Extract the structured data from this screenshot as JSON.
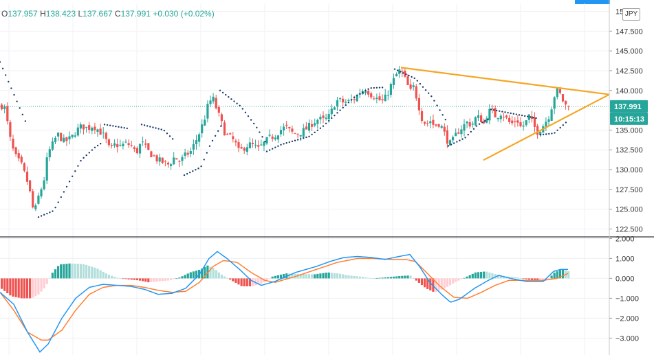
{
  "header": {
    "o_label": "O",
    "o_value": "137.957",
    "h_label": "H",
    "h_value": "138.423",
    "l_label": "L",
    "l_value": "137.667",
    "c_label": "C",
    "c_value": "137.991",
    "change": "+0.030 (+0.02%)"
  },
  "currency": "JPY",
  "price_tag": "137.991",
  "timer_tag": "10:15:13",
  "colors": {
    "up": "#26a69a",
    "down": "#ef5350",
    "psar": "#1a3a6b",
    "trendline": "#f5a623",
    "macd": "#2196f3",
    "signal": "#ff7f32",
    "hist_up_strong": "#26a69a",
    "hist_up_weak": "#b2dfdb",
    "hist_down_strong": "#ef5350",
    "hist_down_weak": "#ffcdd2"
  },
  "chart_data": [
    {
      "type": "candlestick",
      "name": "price",
      "ylim": [
        121.5,
        151.0
      ],
      "y_ticks": [
        "147.500",
        "145.000",
        "142.500",
        "140.000",
        "135.000",
        "132.500",
        "130.000",
        "127.500",
        "125.000",
        "122.500"
      ],
      "top_tick_partial": "15",
      "last_price": 137.991,
      "close_path": [
        [
          0,
          138.0
        ],
        [
          4,
          138.3
        ],
        [
          9,
          136.0
        ],
        [
          15,
          133.0
        ],
        [
          22,
          131.5
        ],
        [
          30,
          130.5
        ],
        [
          40,
          128.0
        ],
        [
          48,
          124.3
        ],
        [
          54,
          126.5
        ],
        [
          62,
          128.5
        ],
        [
          68,
          132.0
        ],
        [
          75,
          133.2
        ],
        [
          82,
          134.5
        ],
        [
          92,
          133.5
        ],
        [
          102,
          134.0
        ],
        [
          110,
          135.0
        ],
        [
          118,
          135.5
        ],
        [
          126,
          135.2
        ],
        [
          134,
          135.6
        ],
        [
          144,
          134.8
        ],
        [
          150,
          134.2
        ],
        [
          158,
          132.5
        ],
        [
          166,
          133.2
        ],
        [
          174,
          133.0
        ],
        [
          182,
          133.3
        ],
        [
          190,
          133.0
        ],
        [
          196,
          132.0
        ],
        [
          204,
          133.5
        ],
        [
          212,
          132.5
        ],
        [
          220,
          131.8
        ],
        [
          228,
          131.2
        ],
        [
          236,
          130.9
        ],
        [
          244,
          130.6
        ],
        [
          252,
          131.6
        ],
        [
          260,
          131.0
        ],
        [
          268,
          131.8
        ],
        [
          276,
          132.3
        ],
        [
          284,
          133.8
        ],
        [
          290,
          135.0
        ],
        [
          296,
          136.5
        ],
        [
          302,
          138.5
        ],
        [
          308,
          139.0
        ],
        [
          314,
          137.5
        ],
        [
          320,
          136.0
        ],
        [
          326,
          134.5
        ],
        [
          334,
          134.0
        ],
        [
          340,
          133.5
        ],
        [
          346,
          132.2
        ],
        [
          352,
          132.7
        ],
        [
          360,
          133.2
        ],
        [
          368,
          133.0
        ],
        [
          374,
          132.6
        ],
        [
          382,
          133.3
        ],
        [
          390,
          134.0
        ],
        [
          398,
          134.3
        ],
        [
          406,
          135.0
        ],
        [
          414,
          135.4
        ],
        [
          422,
          134.7
        ],
        [
          430,
          134.5
        ],
        [
          438,
          134.8
        ],
        [
          446,
          135.3
        ],
        [
          454,
          136.0
        ],
        [
          462,
          136.4
        ],
        [
          470,
          136.2
        ],
        [
          478,
          136.8
        ],
        [
          484,
          138.2
        ],
        [
          490,
          138.8
        ],
        [
          498,
          138.5
        ],
        [
          506,
          138.6
        ],
        [
          514,
          139.0
        ],
        [
          522,
          139.8
        ],
        [
          530,
          140.2
        ],
        [
          538,
          139.5
        ],
        [
          546,
          139.0
        ],
        [
          554,
          138.6
        ],
        [
          560,
          139.2
        ],
        [
          566,
          140.5
        ],
        [
          572,
          141.5
        ],
        [
          578,
          142.5
        ],
        [
          584,
          142.2
        ],
        [
          590,
          140.8
        ],
        [
          596,
          139.8
        ],
        [
          600,
          140.5
        ],
        [
          606,
          138.5
        ],
        [
          612,
          136.5
        ],
        [
          618,
          135.7
        ],
        [
          624,
          136.2
        ],
        [
          630,
          135.5
        ],
        [
          636,
          135.9
        ],
        [
          642,
          135.2
        ],
        [
          648,
          133.8
        ],
        [
          654,
          133.2
        ],
        [
          660,
          134.2
        ],
        [
          666,
          135.0
        ],
        [
          672,
          135.5
        ],
        [
          678,
          136.0
        ],
        [
          684,
          135.6
        ],
        [
          690,
          136.5
        ],
        [
          696,
          136.6
        ],
        [
          702,
          135.8
        ],
        [
          708,
          137.3
        ],
        [
          714,
          137.4
        ],
        [
          720,
          136.6
        ],
        [
          726,
          137.2
        ],
        [
          732,
          136.8
        ],
        [
          738,
          136.0
        ],
        [
          744,
          135.8
        ],
        [
          750,
          136.4
        ],
        [
          756,
          135.3
        ],
        [
          762,
          135.8
        ],
        [
          768,
          136.8
        ],
        [
          774,
          135.6
        ],
        [
          780,
          134.8
        ],
        [
          786,
          135.3
        ],
        [
          792,
          136.1
        ],
        [
          798,
          137.0
        ],
        [
          802,
          138.5
        ],
        [
          806,
          139.8
        ],
        [
          810,
          140.0
        ],
        [
          814,
          139.3
        ],
        [
          818,
          138.5
        ],
        [
          822,
          138.0
        ],
        [
          826,
          137.99
        ]
      ],
      "psar_segments": [
        [
          [
            0,
            143.6
          ],
          [
            40,
            135.5
          ]
        ],
        [
          [
            56,
            124.0
          ],
          [
            78,
            124.8
          ],
          [
            98,
            128.0
          ],
          [
            118,
            131.2
          ],
          [
            138,
            132.8
          ],
          [
            150,
            133.5
          ]
        ],
        [
          [
            152,
            135.7
          ],
          [
            186,
            135.2
          ]
        ],
        [
          [
            206,
            135.7
          ],
          [
            238,
            135.0
          ],
          [
            252,
            133.8
          ]
        ],
        [
          [
            268,
            129.3
          ],
          [
            292,
            130.3
          ],
          [
            306,
            133.2
          ],
          [
            322,
            135.6
          ]
        ],
        [
          [
            320,
            140.0
          ],
          [
            350,
            138.0
          ],
          [
            372,
            135.5
          ],
          [
            386,
            133.5
          ]
        ],
        [
          [
            388,
            132.3
          ],
          [
            410,
            133.2
          ],
          [
            450,
            134.2
          ],
          [
            470,
            135.5
          ],
          [
            492,
            137.3
          ],
          [
            516,
            139.2
          ],
          [
            538,
            140.3
          ],
          [
            560,
            140.4
          ]
        ],
        [
          [
            574,
            142.7
          ],
          [
            604,
            141.5
          ],
          [
            628,
            139.2
          ],
          [
            650,
            136.0
          ]
        ],
        [
          [
            652,
            133.0
          ],
          [
            676,
            134.0
          ],
          [
            694,
            135.6
          ],
          [
            712,
            136.5
          ]
        ],
        [
          [
            714,
            137.6
          ],
          [
            750,
            137.0
          ],
          [
            780,
            136.5
          ]
        ],
        [
          [
            786,
            134.4
          ],
          [
            806,
            134.6
          ],
          [
            826,
            136.2
          ]
        ]
      ],
      "trendlines": [
        {
          "x1": 583,
          "y1": 142.9,
          "x2": 886,
          "y2": 139.5
        },
        {
          "x1": 703,
          "y1": 131.2,
          "x2": 886,
          "y2": 139.5
        }
      ]
    },
    {
      "type": "macd",
      "name": "MACD",
      "ylim": [
        -3.85,
        2.05
      ],
      "y_ticks": [
        "2.000",
        "1.000",
        "0.000",
        "−1.000",
        "−2.000",
        "−3.000"
      ],
      "macd_path": [
        [
          0,
          -0.7
        ],
        [
          20,
          -1.3
        ],
        [
          40,
          -2.7
        ],
        [
          58,
          -3.7
        ],
        [
          70,
          -3.3
        ],
        [
          90,
          -2.0
        ],
        [
          110,
          -1.0
        ],
        [
          130,
          -0.45
        ],
        [
          150,
          -0.3
        ],
        [
          170,
          -0.35
        ],
        [
          190,
          -0.4
        ],
        [
          210,
          -0.55
        ],
        [
          230,
          -0.8
        ],
        [
          250,
          -0.75
        ],
        [
          270,
          -0.5
        ],
        [
          290,
          0.2
        ],
        [
          304,
          1.0
        ],
        [
          316,
          1.35
        ],
        [
          330,
          1.0
        ],
        [
          350,
          0.4
        ],
        [
          365,
          -0.1
        ],
        [
          380,
          -0.35
        ],
        [
          400,
          -0.15
        ],
        [
          430,
          0.3
        ],
        [
          460,
          0.6
        ],
        [
          480,
          0.85
        ],
        [
          500,
          1.05
        ],
        [
          520,
          1.1
        ],
        [
          540,
          1.05
        ],
        [
          560,
          0.95
        ],
        [
          580,
          1.1
        ],
        [
          596,
          1.2
        ],
        [
          610,
          0.6
        ],
        [
          625,
          -0.2
        ],
        [
          642,
          -0.8
        ],
        [
          655,
          -1.2
        ],
        [
          668,
          -1.05
        ],
        [
          690,
          -0.5
        ],
        [
          710,
          -0.1
        ],
        [
          725,
          0.15
        ],
        [
          745,
          -0.02
        ],
        [
          765,
          -0.15
        ],
        [
          790,
          -0.15
        ],
        [
          805,
          0.35
        ],
        [
          815,
          0.45
        ],
        [
          826,
          0.45
        ]
      ],
      "signal_path": [
        [
          0,
          -0.7
        ],
        [
          20,
          -1.6
        ],
        [
          40,
          -2.7
        ],
        [
          60,
          -3.1
        ],
        [
          70,
          -3.1
        ],
        [
          90,
          -2.6
        ],
        [
          110,
          -1.6
        ],
        [
          130,
          -0.8
        ],
        [
          150,
          -0.45
        ],
        [
          170,
          -0.35
        ],
        [
          190,
          -0.35
        ],
        [
          210,
          -0.45
        ],
        [
          230,
          -0.6
        ],
        [
          250,
          -0.7
        ],
        [
          270,
          -0.65
        ],
        [
          290,
          -0.2
        ],
        [
          310,
          0.6
        ],
        [
          325,
          0.9
        ],
        [
          345,
          0.8
        ],
        [
          365,
          0.3
        ],
        [
          385,
          -0.1
        ],
        [
          400,
          -0.2
        ],
        [
          430,
          0.1
        ],
        [
          460,
          0.45
        ],
        [
          490,
          0.8
        ],
        [
          520,
          1.0
        ],
        [
          540,
          1.0
        ],
        [
          570,
          0.95
        ],
        [
          590,
          0.95
        ],
        [
          604,
          0.85
        ],
        [
          620,
          0.3
        ],
        [
          640,
          -0.4
        ],
        [
          660,
          -0.95
        ],
        [
          680,
          -1.0
        ],
        [
          700,
          -0.7
        ],
        [
          720,
          -0.35
        ],
        [
          740,
          -0.1
        ],
        [
          765,
          -0.1
        ],
        [
          790,
          -0.1
        ],
        [
          810,
          0.0
        ],
        [
          826,
          0.25
        ]
      ],
      "hist_path": [
        [
          0,
          -0.5
        ],
        [
          15,
          -0.9
        ],
        [
          30,
          -1.0
        ],
        [
          45,
          -1.0
        ],
        [
          55,
          -0.8
        ],
        [
          65,
          -0.4
        ],
        [
          75,
          0.3
        ],
        [
          85,
          0.7
        ],
        [
          100,
          0.75
        ],
        [
          120,
          0.72
        ],
        [
          140,
          0.5
        ],
        [
          155,
          0.2
        ],
        [
          170,
          0.02
        ],
        [
          185,
          -0.05
        ],
        [
          200,
          -0.1
        ],
        [
          215,
          -0.2
        ],
        [
          230,
          -0.15
        ],
        [
          245,
          -0.1
        ],
        [
          260,
          0.05
        ],
        [
          275,
          0.3
        ],
        [
          290,
          0.45
        ],
        [
          300,
          0.65
        ],
        [
          310,
          0.5
        ],
        [
          320,
          0.2
        ],
        [
          335,
          -0.1
        ],
        [
          350,
          -0.4
        ],
        [
          365,
          -0.4
        ],
        [
          380,
          -0.25
        ],
        [
          395,
          0.1
        ],
        [
          415,
          0.25
        ],
        [
          435,
          0.22
        ],
        [
          455,
          0.2
        ],
        [
          475,
          0.3
        ],
        [
          490,
          0.25
        ],
        [
          505,
          0.15
        ],
        [
          520,
          0.1
        ],
        [
          540,
          0.0
        ],
        [
          560,
          0.05
        ],
        [
          580,
          0.12
        ],
        [
          595,
          0.15
        ],
        [
          605,
          -0.15
        ],
        [
          618,
          -0.5
        ],
        [
          630,
          -0.7
        ],
        [
          645,
          -0.5
        ],
        [
          660,
          -0.2
        ],
        [
          675,
          0.05
        ],
        [
          690,
          0.3
        ],
        [
          705,
          0.35
        ],
        [
          720,
          0.2
        ],
        [
          735,
          0.1
        ],
        [
          750,
          0.05
        ],
        [
          765,
          -0.05
        ],
        [
          780,
          -0.1
        ],
        [
          795,
          -0.05
        ],
        [
          805,
          0.3
        ],
        [
          815,
          0.45
        ],
        [
          826,
          0.35
        ]
      ]
    }
  ]
}
